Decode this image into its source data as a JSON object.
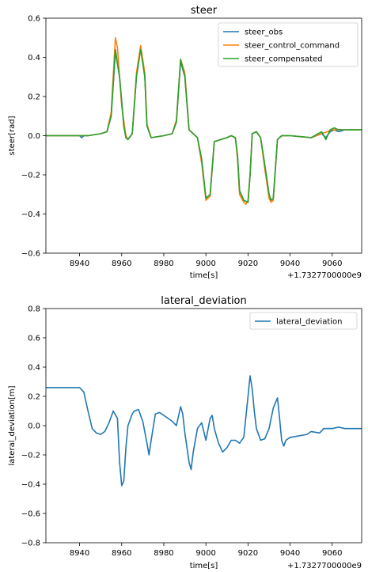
{
  "chart_data": [
    {
      "type": "line",
      "title": "steer",
      "xlabel": "time[s]",
      "ylabel": "steer[rad]",
      "offset_label": "+1.7327700000e9",
      "xlim": [
        8924,
        9074
      ],
      "ylim": [
        -0.6,
        0.6
      ],
      "xticks": [
        8940,
        8960,
        8980,
        9000,
        9020,
        9040,
        9060
      ],
      "yticks": [
        -0.6,
        -0.4,
        -0.2,
        0.0,
        0.2,
        0.4,
        0.6
      ],
      "xtick_labels": [
        "8940",
        "8960",
        "8980",
        "9000",
        "9020",
        "9040",
        "9060"
      ],
      "ytick_labels": [
        "−0.6",
        "−0.4",
        "−0.2",
        "0.0",
        "0.2",
        "0.4",
        "0.6"
      ],
      "grid": false,
      "legend": "top-right",
      "series": [
        {
          "name": "steer_obs",
          "color": "#1f77b4",
          "x": [
            8924,
            8940,
            8941,
            8942,
            8944,
            8950,
            8953,
            8955,
            8957,
            8959,
            8961,
            8962,
            8963,
            8965,
            8967,
            8969,
            8971,
            8972,
            8974,
            8980,
            8984,
            8986,
            8988,
            8990,
            8992,
            8996,
            8998,
            9000,
            9002,
            9004,
            9010,
            9012,
            9014,
            9015,
            9016,
            9018,
            9020,
            9021,
            9022,
            9024,
            9026,
            9028,
            9030,
            9031,
            9032,
            9034,
            9036,
            9040,
            9050,
            9055,
            9057,
            9059,
            9061,
            9063,
            9066,
            9074
          ],
          "y": [
            0.0,
            0.0,
            -0.01,
            0.0,
            0.0,
            0.01,
            0.02,
            0.1,
            0.43,
            0.3,
            0.05,
            -0.01,
            -0.02,
            0.01,
            0.3,
            0.45,
            0.3,
            0.05,
            -0.01,
            0.0,
            0.01,
            0.07,
            0.38,
            0.3,
            0.03,
            -0.01,
            -0.12,
            -0.32,
            -0.3,
            -0.03,
            -0.01,
            0.0,
            -0.01,
            -0.1,
            -0.28,
            -0.33,
            -0.34,
            -0.2,
            0.01,
            0.02,
            -0.01,
            -0.15,
            -0.3,
            -0.33,
            -0.32,
            -0.02,
            0.0,
            0.0,
            -0.01,
            0.01,
            -0.01,
            0.02,
            0.03,
            0.02,
            0.03,
            0.03
          ]
        },
        {
          "name": "steer_control_command",
          "color": "#ff7f0e",
          "x": [
            8924,
            8940,
            8944,
            8950,
            8953,
            8955,
            8957,
            8958,
            8960,
            8962,
            8963,
            8965,
            8967,
            8969,
            8971,
            8972,
            8974,
            8980,
            8984,
            8986,
            8988,
            8990,
            8992,
            8996,
            8998,
            9000,
            9002,
            9004,
            9010,
            9012,
            9014,
            9015,
            9016,
            9018,
            9019,
            9020,
            9021,
            9022,
            9024,
            9026,
            9028,
            9030,
            9031,
            9032,
            9034,
            9036,
            9040,
            9050,
            9055,
            9060,
            9066,
            9074
          ],
          "y": [
            0.0,
            0.0,
            0.0,
            0.01,
            0.02,
            0.12,
            0.5,
            0.45,
            0.15,
            0.0,
            -0.02,
            0.01,
            0.32,
            0.46,
            0.32,
            0.06,
            -0.01,
            0.0,
            0.01,
            0.08,
            0.39,
            0.32,
            0.03,
            -0.01,
            -0.14,
            -0.33,
            -0.31,
            -0.03,
            -0.01,
            0.0,
            -0.01,
            -0.12,
            -0.3,
            -0.34,
            -0.35,
            -0.33,
            -0.2,
            0.01,
            0.02,
            -0.01,
            -0.17,
            -0.32,
            -0.34,
            -0.33,
            -0.02,
            0.0,
            0.0,
            -0.01,
            0.01,
            0.03,
            0.03,
            0.03
          ]
        },
        {
          "name": "steer_compensated",
          "color": "#2ca02c",
          "x": [
            8924,
            8940,
            8944,
            8950,
            8953,
            8955,
            8957,
            8959,
            8961,
            8962,
            8963,
            8965,
            8967,
            8969,
            8971,
            8972,
            8974,
            8980,
            8984,
            8986,
            8988,
            8990,
            8992,
            8996,
            8998,
            9000,
            9002,
            9004,
            9010,
            9012,
            9014,
            9015,
            9016,
            9018,
            9020,
            9021,
            9022,
            9024,
            9026,
            9028,
            9030,
            9031,
            9032,
            9034,
            9036,
            9040,
            9050,
            9055,
            9057,
            9059,
            9061,
            9063,
            9066,
            9074
          ],
          "y": [
            0.0,
            0.0,
            0.0,
            0.01,
            0.02,
            0.1,
            0.44,
            0.3,
            0.05,
            -0.01,
            -0.02,
            0.01,
            0.3,
            0.44,
            0.3,
            0.05,
            -0.01,
            0.0,
            0.01,
            0.07,
            0.39,
            0.3,
            0.03,
            -0.01,
            -0.12,
            -0.32,
            -0.3,
            -0.03,
            -0.01,
            0.0,
            -0.01,
            -0.1,
            -0.28,
            -0.33,
            -0.34,
            -0.2,
            0.01,
            0.02,
            -0.01,
            -0.15,
            -0.3,
            -0.33,
            -0.32,
            -0.02,
            0.0,
            0.0,
            -0.01,
            0.02,
            -0.02,
            0.03,
            0.04,
            0.03,
            0.03,
            0.03
          ]
        }
      ]
    },
    {
      "type": "line",
      "title": "lateral_deviation",
      "xlabel": "time[s]",
      "ylabel": "lateral_deviation[m]",
      "offset_label": "+1.7327700000e9",
      "xlim": [
        8924,
        9074
      ],
      "ylim": [
        -0.8,
        0.8
      ],
      "xticks": [
        8940,
        8960,
        8980,
        9000,
        9020,
        9040,
        9060
      ],
      "yticks": [
        -0.8,
        -0.6,
        -0.4,
        -0.2,
        0.0,
        0.2,
        0.4,
        0.6,
        0.8
      ],
      "xtick_labels": [
        "8940",
        "8960",
        "8980",
        "9000",
        "9020",
        "9040",
        "9060"
      ],
      "ytick_labels": [
        "−0.8",
        "−0.6",
        "−0.4",
        "−0.2",
        "0.0",
        "0.2",
        "0.4",
        "0.6",
        "0.8"
      ],
      "grid": false,
      "legend": "top-right",
      "series": [
        {
          "name": "lateral_deviation",
          "color": "#1f77b4",
          "x": [
            8924,
            8940,
            8942,
            8944,
            8946,
            8948,
            8950,
            8952,
            8954,
            8956,
            8958,
            8959,
            8960,
            8961,
            8962,
            8963,
            8965,
            8966,
            8968,
            8970,
            8972,
            8973,
            8974,
            8976,
            8978,
            8980,
            8984,
            8986,
            8988,
            8989,
            8990,
            8992,
            8993,
            8994,
            8996,
            8998,
            9000,
            9002,
            9003,
            9004,
            9006,
            9008,
            9010,
            9012,
            9014,
            9016,
            9018,
            9020,
            9021,
            9022,
            9023,
            9024,
            9026,
            9028,
            9030,
            9032,
            9034,
            9035,
            9036,
            9037,
            9038,
            9040,
            9044,
            9048,
            9050,
            9054,
            9056,
            9060,
            9063,
            9066,
            9070,
            9074
          ],
          "y": [
            0.26,
            0.26,
            0.23,
            0.1,
            -0.02,
            -0.05,
            -0.06,
            -0.04,
            0.02,
            0.1,
            0.05,
            -0.25,
            -0.41,
            -0.38,
            -0.15,
            0.0,
            0.08,
            0.1,
            0.11,
            0.03,
            -0.12,
            -0.2,
            -0.1,
            0.08,
            0.09,
            0.07,
            0.03,
            0.0,
            0.13,
            0.08,
            -0.05,
            -0.25,
            -0.3,
            -0.18,
            -0.02,
            0.02,
            -0.1,
            0.05,
            0.07,
            -0.02,
            -0.12,
            -0.18,
            -0.15,
            -0.1,
            -0.1,
            -0.12,
            -0.08,
            0.2,
            0.34,
            0.25,
            0.1,
            -0.02,
            -0.1,
            -0.09,
            -0.02,
            0.12,
            0.19,
            0.05,
            -0.1,
            -0.14,
            -0.1,
            -0.08,
            -0.07,
            -0.06,
            -0.04,
            -0.05,
            -0.02,
            -0.02,
            -0.01,
            -0.02,
            -0.02,
            -0.02
          ]
        }
      ]
    }
  ]
}
